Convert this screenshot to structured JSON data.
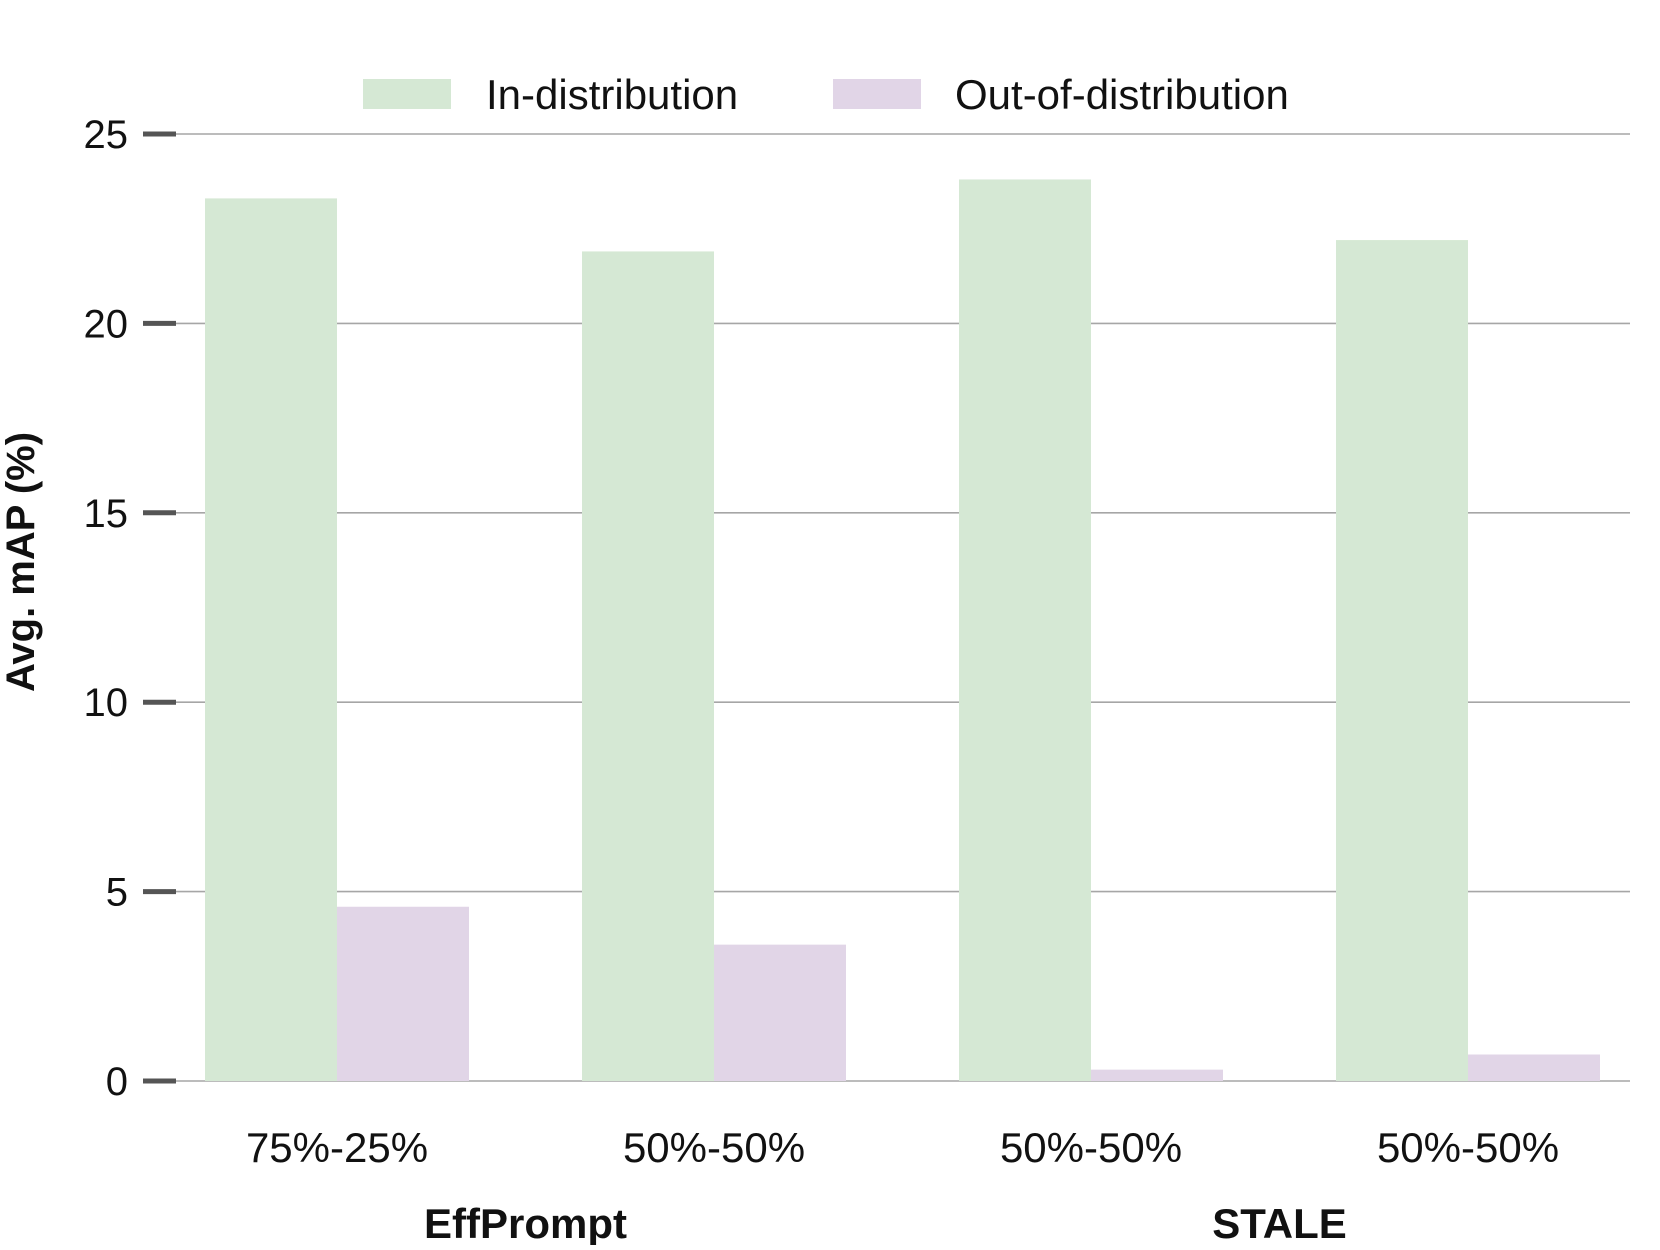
{
  "chart_data": {
    "type": "bar",
    "title": "",
    "xlabel": "",
    "ylabel": "Avg. mAP (%)",
    "ylim": [
      0,
      25
    ],
    "yticks": [
      0,
      5,
      10,
      15,
      20,
      25
    ],
    "grid": true,
    "legend_position": "top-center",
    "categories": [
      "75%-25%",
      "50%-50%",
      "50%-50%",
      "50%-50%"
    ],
    "groups": [
      {
        "label": "EffPrompt",
        "categories": [
          0,
          1
        ]
      },
      {
        "label": "STALE",
        "categories": [
          2,
          3
        ]
      }
    ],
    "series": [
      {
        "name": "In-distribution",
        "color": "#d5e8d4",
        "values": [
          23.3,
          21.9,
          23.8,
          22.2
        ]
      },
      {
        "name": "Out-of-distribution",
        "color": "#e1d5e7",
        "values": [
          4.6,
          3.6,
          0.3,
          0.7
        ]
      }
    ]
  }
}
